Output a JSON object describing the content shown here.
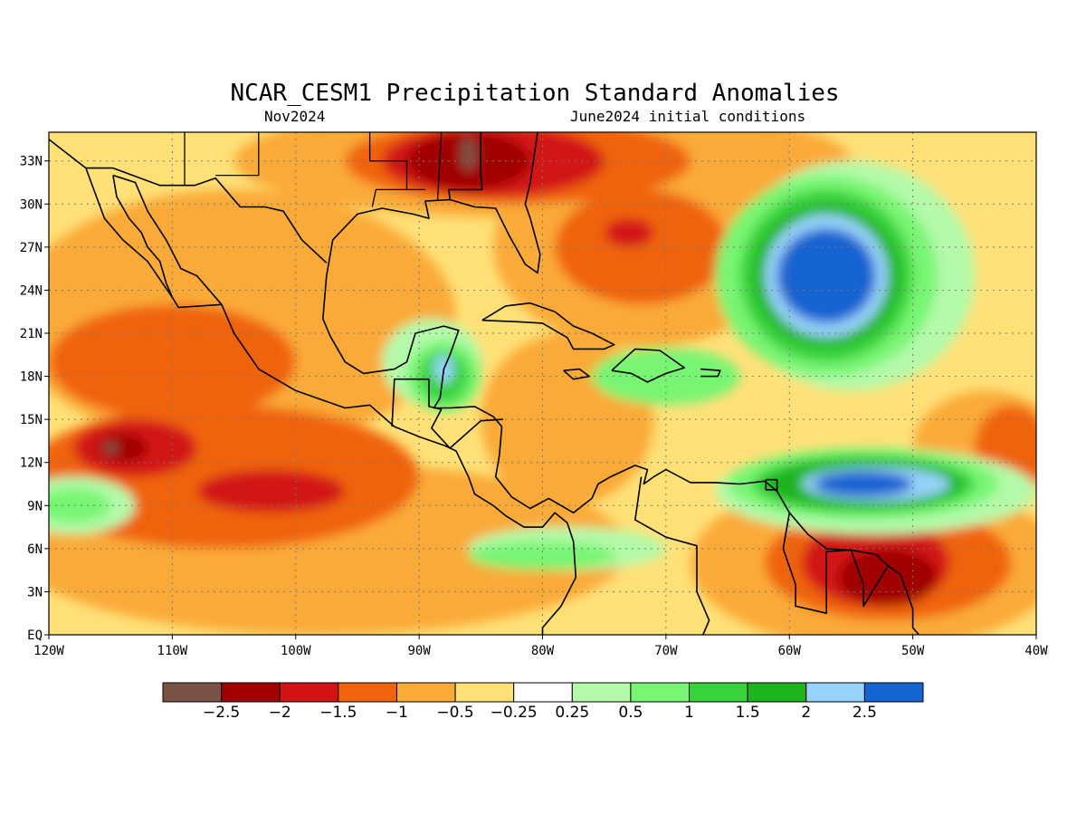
{
  "title": "NCAR_CESM1 Precipitation Standard Anomalies",
  "subtitle_left": "Nov2024",
  "subtitle_right": "June2024 initial conditions",
  "map": {
    "lon_range": [
      -120,
      -40
    ],
    "lat_range": [
      0,
      35
    ],
    "lat_ticks": [
      {
        "value": 33,
        "label": "33N"
      },
      {
        "value": 30,
        "label": "30N"
      },
      {
        "value": 27,
        "label": "27N"
      },
      {
        "value": 24,
        "label": "24N"
      },
      {
        "value": 21,
        "label": "21N"
      },
      {
        "value": 18,
        "label": "18N"
      },
      {
        "value": 15,
        "label": "15N"
      },
      {
        "value": 12,
        "label": "12N"
      },
      {
        "value": 9,
        "label": "9N"
      },
      {
        "value": 6,
        "label": "6N"
      },
      {
        "value": 3,
        "label": "3N"
      },
      {
        "value": 0,
        "label": "EQ"
      }
    ],
    "lon_ticks": [
      {
        "value": -120,
        "label": "120W"
      },
      {
        "value": -110,
        "label": "110W"
      },
      {
        "value": -100,
        "label": "100W"
      },
      {
        "value": -90,
        "label": "90W"
      },
      {
        "value": -80,
        "label": "80W"
      },
      {
        "value": -70,
        "label": "70W"
      },
      {
        "value": -60,
        "label": "60W"
      },
      {
        "value": -50,
        "label": "50W"
      },
      {
        "value": -40,
        "label": "40W"
      }
    ],
    "gridlines": "dotted"
  },
  "colorbar": {
    "colors": [
      "#7a5246",
      "#a00000",
      "#d21313",
      "#f0640f",
      "#faaa37",
      "#ffe178",
      "#ffffff",
      "#b4faaa",
      "#78f573",
      "#37d23c",
      "#1eb41e",
      "#96d2fa",
      "#1464d2"
    ],
    "labels": [
      "−2.5",
      "−2",
      "−1.5",
      "−1",
      "−0.5",
      "−0.25",
      "0.25",
      "0.5",
      "1",
      "1.5",
      "2",
      "2.5"
    ]
  },
  "anomaly_regions": [
    {
      "level": "-0.5",
      "color": "#faaa37",
      "lon": -105,
      "lat": 22,
      "rx": 18,
      "ry": 9
    },
    {
      "level": "-0.5",
      "color": "#faaa37",
      "lon": -98,
      "lat": 6,
      "rx": 25,
      "ry": 6
    },
    {
      "level": "-0.5",
      "color": "#faaa37",
      "lon": -80,
      "lat": 33,
      "rx": 25,
      "ry": 4
    },
    {
      "level": "-0.5",
      "color": "#faaa37",
      "lon": -72,
      "lat": 27,
      "rx": 12,
      "ry": 7
    },
    {
      "level": "-0.5",
      "color": "#faaa37",
      "lon": -78,
      "lat": 15,
      "rx": 7,
      "ry": 6
    },
    {
      "level": "-0.5",
      "color": "#faaa37",
      "lon": -53,
      "lat": 5,
      "rx": 15,
      "ry": 6
    },
    {
      "level": "-0.5",
      "color": "#faaa37",
      "lon": -44,
      "lat": 13,
      "rx": 6,
      "ry": 4
    },
    {
      "level": "-1",
      "color": "#f0640f",
      "lon": -106,
      "lat": 11,
      "rx": 16,
      "ry": 5
    },
    {
      "level": "-1",
      "color": "#f0640f",
      "lon": -110,
      "lat": 19,
      "rx": 10,
      "ry": 4
    },
    {
      "level": "-1",
      "color": "#f0640f",
      "lon": -72,
      "lat": 27,
      "rx": 7,
      "ry": 4
    },
    {
      "level": "-1",
      "color": "#f0640f",
      "lon": -82,
      "lat": 33,
      "rx": 14,
      "ry": 3
    },
    {
      "level": "-1",
      "color": "#f0640f",
      "lon": -52,
      "lat": 5,
      "rx": 10,
      "ry": 4
    },
    {
      "level": "-1",
      "color": "#f0640f",
      "lon": -42,
      "lat": 13,
      "rx": 3,
      "ry": 3
    },
    {
      "level": "-1.5",
      "color": "#d21313",
      "lon": -113,
      "lat": 13,
      "rx": 5,
      "ry": 2
    },
    {
      "level": "-1.5",
      "color": "#d21313",
      "lon": -102,
      "lat": 10,
      "rx": 6,
      "ry": 1.5
    },
    {
      "level": "-1.5",
      "color": "#d21313",
      "lon": -84,
      "lat": 33,
      "rx": 9,
      "ry": 2.5
    },
    {
      "level": "-1.5",
      "color": "#d21313",
      "lon": -53,
      "lat": 5,
      "rx": 6,
      "ry": 3
    },
    {
      "level": "-1.5",
      "color": "#d21313",
      "lon": -73,
      "lat": 28,
      "rx": 2,
      "ry": 1
    },
    {
      "level": "-2",
      "color": "#a00000",
      "lon": -86,
      "lat": 33,
      "rx": 5,
      "ry": 2
    },
    {
      "level": "-2",
      "color": "#a00000",
      "lon": -52,
      "lat": 4,
      "rx": 4,
      "ry": 2
    },
    {
      "level": "-2",
      "color": "#a00000",
      "lon": -114,
      "lat": 13,
      "rx": 2,
      "ry": 1
    },
    {
      "level": "-2.5",
      "color": "#7a5246",
      "lon": -115,
      "lat": 13,
      "rx": 0.6,
      "ry": 0.4
    },
    {
      "level": "-2.5",
      "color": "#7a5246",
      "lon": -86,
      "lat": 33.5,
      "rx": 0.6,
      "ry": 1.2
    },
    {
      "level": "0.5",
      "color": "#b4faaa",
      "lon": -55,
      "lat": 25,
      "rx": 10,
      "ry": 8
    },
    {
      "level": "0.5",
      "color": "#b4faaa",
      "lon": -53,
      "lat": 10,
      "rx": 13,
      "ry": 3
    },
    {
      "level": "0.5",
      "color": "#b4faaa",
      "lon": -118,
      "lat": 9,
      "rx": 5,
      "ry": 2
    },
    {
      "level": "0.5",
      "color": "#b4faaa",
      "lon": -78,
      "lat": 6,
      "rx": 8,
      "ry": 1.5
    },
    {
      "level": "0.5",
      "color": "#b4faaa",
      "lon": -89,
      "lat": 19,
      "rx": 4,
      "ry": 3
    },
    {
      "level": "1",
      "color": "#78f573",
      "lon": -57,
      "lat": 25,
      "rx": 9,
      "ry": 7
    },
    {
      "level": "1",
      "color": "#78f573",
      "lon": -54,
      "lat": 10.5,
      "rx": 11,
      "ry": 2.5
    },
    {
      "level": "1",
      "color": "#78f573",
      "lon": -118,
      "lat": 9,
      "rx": 3,
      "ry": 1.2
    },
    {
      "level": "1",
      "color": "#78f573",
      "lon": -88,
      "lat": 18,
      "rx": 3,
      "ry": 2.5
    },
    {
      "level": "1",
      "color": "#78f573",
      "lon": -70,
      "lat": 18,
      "rx": 6,
      "ry": 2
    },
    {
      "level": "1",
      "color": "#78f573",
      "lon": -80,
      "lat": 5.5,
      "rx": 6,
      "ry": 1
    },
    {
      "level": "1.5",
      "color": "#37d23c",
      "lon": -57,
      "lat": 25,
      "rx": 7,
      "ry": 6
    },
    {
      "level": "1.5",
      "color": "#37d23c",
      "lon": -54,
      "lat": 10.5,
      "rx": 9,
      "ry": 2
    },
    {
      "level": "1.5",
      "color": "#37d23c",
      "lon": -88,
      "lat": 18,
      "rx": 2,
      "ry": 1.8
    },
    {
      "level": "2",
      "color": "#1eb41e",
      "lon": -57,
      "lat": 25,
      "rx": 6,
      "ry": 5
    },
    {
      "level": "2",
      "color": "#1eb41e",
      "lon": -54,
      "lat": 10.5,
      "rx": 8,
      "ry": 1.7
    },
    {
      "level": "2.5",
      "color": "#96d2fa",
      "lon": -57,
      "lat": 25,
      "rx": 5,
      "ry": 4.3
    },
    {
      "level": "2.5",
      "color": "#96d2fa",
      "lon": -53,
      "lat": 10.5,
      "rx": 6,
      "ry": 1.2
    },
    {
      "level": "2.5",
      "color": "#96d2fa",
      "lon": -88,
      "lat": 18.5,
      "rx": 0.8,
      "ry": 1
    },
    {
      "level": ">2.5",
      "color": "#1464d2",
      "lon": -57,
      "lat": 25,
      "rx": 4,
      "ry": 3.3
    },
    {
      "level": ">2.5",
      "color": "#1464d2",
      "lon": -54,
      "lat": 10.5,
      "rx": 4,
      "ry": 0.9
    }
  ],
  "coastlines": [
    {
      "name": "north-america-pacific-coast",
      "points": [
        [
          -120,
          34.5
        ],
        [
          -117,
          32.5
        ],
        [
          -115.5,
          29
        ],
        [
          -114,
          27.5
        ],
        [
          -112,
          26
        ],
        [
          -110,
          23.5
        ],
        [
          -109.5,
          22.8
        ],
        [
          -106,
          23
        ],
        [
          -105,
          21
        ],
        [
          -103,
          18.5
        ],
        [
          -100,
          17
        ],
        [
          -96,
          15.8
        ],
        [
          -94,
          16
        ],
        [
          -92,
          14.5
        ],
        [
          -90,
          13.8
        ],
        [
          -88,
          13.2
        ],
        [
          -87,
          12.8
        ],
        [
          -86,
          11
        ],
        [
          -85.5,
          9.8
        ],
        [
          -84,
          9
        ],
        [
          -83,
          8.3
        ],
        [
          -81.5,
          7.5
        ],
        [
          -80,
          7.5
        ],
        [
          -79,
          8.5
        ],
        [
          -78,
          7.8
        ],
        [
          -77.5,
          6.5
        ],
        [
          -77.3,
          4
        ],
        [
          -78.5,
          2
        ],
        [
          -80,
          0.5
        ],
        [
          -80,
          0
        ]
      ]
    },
    {
      "name": "baja-east-coast",
      "points": [
        [
          -114.8,
          32
        ],
        [
          -114.5,
          30.5
        ],
        [
          -113.5,
          29
        ],
        [
          -112.5,
          28
        ],
        [
          -112,
          27
        ],
        [
          -111,
          26
        ],
        [
          -110.5,
          24.5
        ],
        [
          -110,
          23.5
        ]
      ]
    },
    {
      "name": "gulf-of-california-mainland",
      "points": [
        [
          -114.8,
          32
        ],
        [
          -113,
          31.5
        ],
        [
          -112,
          29.5
        ],
        [
          -110.5,
          27.5
        ],
        [
          -109.3,
          25.5
        ],
        [
          -108,
          25
        ],
        [
          -106,
          23
        ]
      ]
    },
    {
      "name": "gulf-of-mexico-coast",
      "points": [
        [
          -80.4,
          35
        ],
        [
          -81,
          31.5
        ],
        [
          -81.4,
          30
        ],
        [
          -81,
          29
        ],
        [
          -80.2,
          26.5
        ],
        [
          -80.4,
          25.2
        ],
        [
          -81.4,
          25.8
        ],
        [
          -82.7,
          27.8
        ],
        [
          -83.8,
          29.7
        ],
        [
          -85.5,
          29.8
        ],
        [
          -87.5,
          30.3
        ],
        [
          -89.5,
          30.2
        ],
        [
          -89.2,
          29
        ],
        [
          -90.5,
          29.3
        ],
        [
          -93,
          29.7
        ],
        [
          -95,
          29.3
        ],
        [
          -97,
          27.5
        ],
        [
          -97.5,
          25
        ],
        [
          -97.8,
          22
        ],
        [
          -97.2,
          20.8
        ],
        [
          -96,
          19
        ],
        [
          -94.5,
          18.2
        ],
        [
          -92,
          18.5
        ],
        [
          -91,
          19
        ],
        [
          -90.3,
          21
        ],
        [
          -88,
          21.5
        ],
        [
          -86.8,
          21.2
        ],
        [
          -87.5,
          19.5
        ],
        [
          -88,
          18.5
        ],
        [
          -88.3,
          16.5
        ],
        [
          -88.8,
          15.8
        ],
        [
          -87.5,
          15.8
        ],
        [
          -85.5,
          15.9
        ],
        [
          -84,
          15.2
        ],
        [
          -83.3,
          14.5
        ],
        [
          -83.5,
          12.5
        ],
        [
          -83.8,
          11
        ],
        [
          -82.5,
          9.6
        ],
        [
          -81,
          8.8
        ],
        [
          -79.5,
          9.5
        ],
        [
          -77.5,
          8.5
        ],
        [
          -76,
          9.5
        ],
        [
          -75.5,
          10.5
        ],
        [
          -74.5,
          11
        ],
        [
          -72.5,
          11.8
        ],
        [
          -71.5,
          11.5
        ],
        [
          -71.8,
          10.5
        ],
        [
          -71,
          11
        ],
        [
          -70,
          11.5
        ],
        [
          -68,
          10.6
        ],
        [
          -66,
          10.6
        ],
        [
          -64,
          10.5
        ],
        [
          -62,
          10.7
        ],
        [
          -61,
          10
        ],
        [
          -60,
          8.5
        ],
        [
          -58.5,
          7
        ],
        [
          -57,
          6
        ],
        [
          -55,
          5.9
        ],
        [
          -53,
          5.6
        ],
        [
          -52,
          4.8
        ],
        [
          -51,
          4.2
        ],
        [
          -50,
          1.8
        ],
        [
          -50,
          0.5
        ],
        [
          -49.5,
          0
        ]
      ]
    },
    {
      "name": "cuba",
      "points": [
        [
          -84.9,
          21.9
        ],
        [
          -83,
          22.9
        ],
        [
          -81,
          23.1
        ],
        [
          -79,
          22.5
        ],
        [
          -77.5,
          21.5
        ],
        [
          -76,
          21
        ],
        [
          -74.2,
          20.2
        ],
        [
          -75,
          19.9
        ],
        [
          -77.5,
          19.9
        ],
        [
          -78,
          20.7
        ],
        [
          -80,
          21.7
        ],
        [
          -82,
          21.8
        ],
        [
          -84.9,
          21.9
        ]
      ]
    },
    {
      "name": "hispaniola",
      "points": [
        [
          -74.4,
          18.4
        ],
        [
          -72.5,
          19.9
        ],
        [
          -70.5,
          19.8
        ],
        [
          -68.5,
          18.6
        ],
        [
          -70,
          18.2
        ],
        [
          -71.5,
          17.6
        ],
        [
          -72.8,
          18.2
        ],
        [
          -74.4,
          18.4
        ]
      ]
    },
    {
      "name": "jamaica",
      "points": [
        [
          -78.3,
          18.4
        ],
        [
          -77,
          18.5
        ],
        [
          -76.2,
          18
        ],
        [
          -77.5,
          17.8
        ],
        [
          -78.3,
          18.4
        ]
      ]
    },
    {
      "name": "puerto-rico",
      "points": [
        [
          -67.2,
          18.5
        ],
        [
          -65.6,
          18.4
        ],
        [
          -65.8,
          18
        ],
        [
          -67.2,
          18
        ]
      ]
    },
    {
      "name": "trinidad",
      "points": [
        [
          -61.9,
          10.8
        ],
        [
          -61,
          10.8
        ],
        [
          -61,
          10.1
        ],
        [
          -61.9,
          10.1
        ],
        [
          -61.9,
          10.8
        ]
      ]
    },
    {
      "name": "us-mexico-border",
      "points": [
        [
          -117,
          32.5
        ],
        [
          -114.8,
          32.5
        ],
        [
          -111,
          31.3
        ],
        [
          -108.2,
          31.3
        ],
        [
          -106.5,
          31.8
        ],
        [
          -104.5,
          29.8
        ],
        [
          -102.5,
          29.8
        ],
        [
          -101,
          29.5
        ],
        [
          -99.5,
          27.5
        ],
        [
          -97.5,
          25.9
        ]
      ]
    },
    {
      "name": "mexico-guatemala-border",
      "points": [
        [
          -92.2,
          14.5
        ],
        [
          -92,
          17.8
        ],
        [
          -91,
          17.8
        ],
        [
          -90.5,
          17.8
        ],
        [
          -89.2,
          17.8
        ]
      ]
    },
    {
      "name": "central-america-borders",
      "points": [
        [
          -89.2,
          17.8
        ],
        [
          -89.2,
          15.9
        ],
        [
          -88.2,
          15.7
        ],
        [
          -89,
          14.4
        ],
        [
          -87.5,
          13
        ],
        [
          -85,
          14.9
        ],
        [
          -83.2,
          15
        ]
      ]
    },
    {
      "name": "colombia-venezuela-border",
      "points": [
        [
          -72,
          11
        ],
        [
          -72.5,
          8
        ],
        [
          -70,
          6.8
        ],
        [
          -67.5,
          6.2
        ],
        [
          -67.5,
          3
        ],
        [
          -66.5,
          1
        ],
        [
          -67,
          0
        ]
      ]
    },
    {
      "name": "guianas-borders",
      "points": [
        [
          -60,
          8.5
        ],
        [
          -60.5,
          6
        ],
        [
          -59.5,
          3.5
        ],
        [
          -59.5,
          2
        ],
        [
          -57,
          1.5
        ],
        [
          -57,
          5.8
        ],
        [
          -55,
          5.9
        ],
        [
          -54,
          3.5
        ],
        [
          -54,
          2
        ],
        [
          -52,
          4.8
        ]
      ]
    },
    {
      "name": "us-state-lines",
      "points": [
        [
          -85,
          35
        ],
        [
          -85,
          32
        ],
        [
          -84.9,
          31
        ],
        [
          -87.6,
          31
        ],
        [
          -87.5,
          30.3
        ]
      ]
    }
  ],
  "boundary_lines": [
    {
      "name": "state-line-1",
      "points": [
        [
          -109,
          35
        ],
        [
          -109,
          31.3
        ]
      ]
    },
    {
      "name": "state-line-2",
      "points": [
        [
          -103,
          35
        ],
        [
          -103,
          32
        ],
        [
          -106.5,
          32
        ]
      ]
    },
    {
      "name": "state-line-3",
      "points": [
        [
          -94,
          35
        ],
        [
          -94,
          33
        ],
        [
          -91,
          33
        ],
        [
          -91,
          31
        ],
        [
          -89.5,
          31
        ]
      ]
    },
    {
      "name": "state-line-4",
      "points": [
        [
          -88.2,
          35
        ],
        [
          -88.5,
          30.3
        ]
      ]
    },
    {
      "name": "state-line-5",
      "points": [
        [
          -91,
          31
        ],
        [
          -93.5,
          31
        ],
        [
          -93.8,
          29.8
        ]
      ]
    }
  ]
}
